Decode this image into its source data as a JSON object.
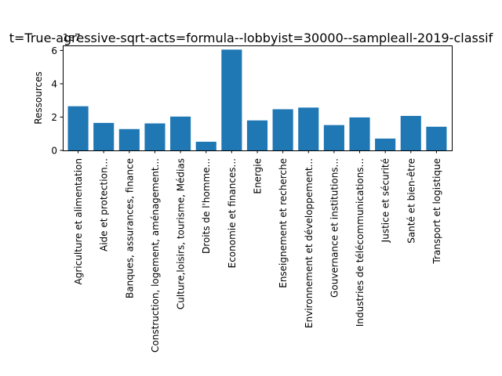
{
  "chart_data": {
    "type": "bar",
    "title": "t=True-agressive-sqrt-acts=formula--lobbyist=30000--sampleall-2019-classif",
    "xlabel": "",
    "ylabel": "Ressources",
    "offset_text": "1e7",
    "ylim": [
      0,
      6.3
    ],
    "yticks": [
      0,
      2,
      4,
      6
    ],
    "ytick_labels": [
      "0",
      "2",
      "4",
      "6"
    ],
    "grid": false,
    "bar_color": "#1f77b4",
    "categories": [
      "Agriculture et alimentation",
      "Aide et protection...",
      "Banques, assurances, finance",
      "Construction, logement, aménagement...",
      "Culture,loisirs, tourisme, Médias",
      "Droits de l'homme...",
      "Economie et finances...",
      "Energie",
      "Enseignement et recherche",
      "Environnement et développement...",
      "Gouvernance et institutions...",
      "Industries de télécommunications...",
      "Justice et sécurité",
      "Santé et bien-être",
      "Transport et logistique"
    ],
    "values": [
      2.65,
      1.65,
      1.28,
      1.62,
      2.03,
      0.52,
      6.05,
      1.8,
      2.47,
      2.57,
      1.52,
      1.98,
      0.71,
      2.07,
      1.42
    ]
  }
}
